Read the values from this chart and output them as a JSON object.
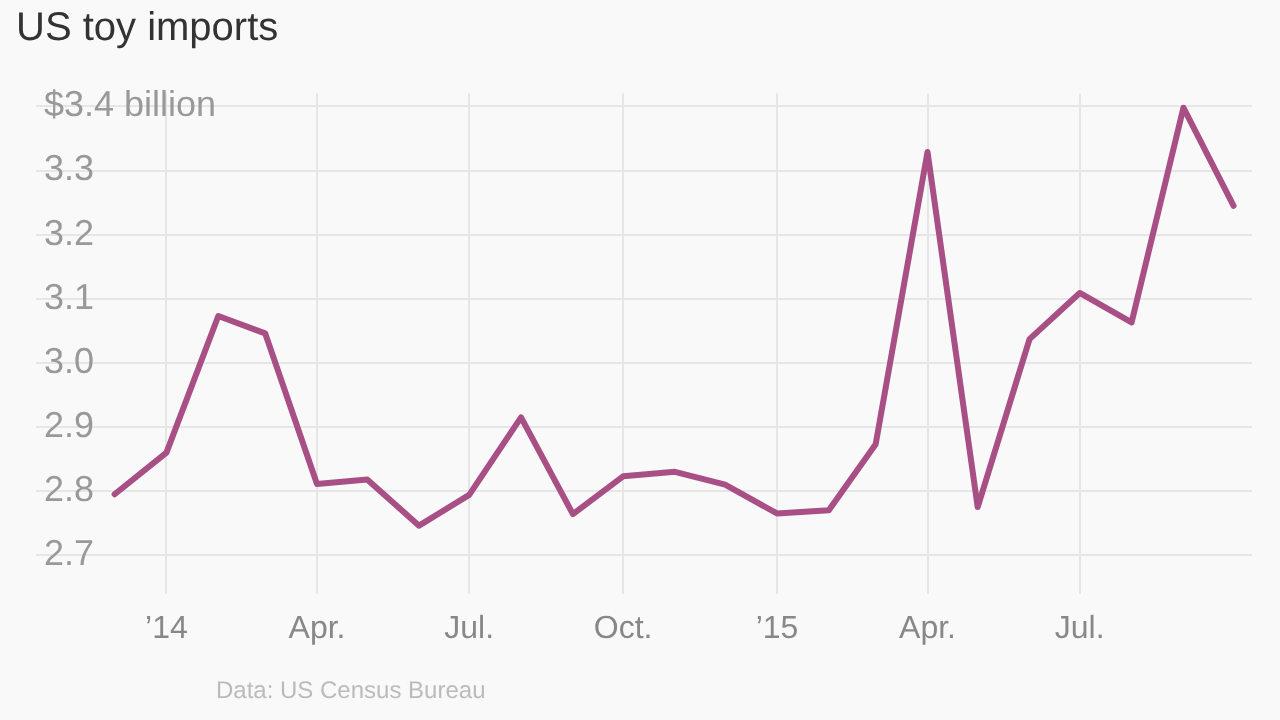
{
  "chart_data": {
    "type": "line",
    "title": "US toy imports",
    "annotations": [
      "Data: US Census Bureau"
    ],
    "x": [
      "2013-12-01",
      "2014-01-01",
      "2014-02-01",
      "2014-03-01",
      "2014-04-01",
      "2014-05-01",
      "2014-06-01",
      "2014-07-01",
      "2014-08-01",
      "2014-09-01",
      "2014-10-01",
      "2014-11-01",
      "2014-12-01",
      "2015-01-01",
      "2015-02-01",
      "2015-03-01",
      "2015-04-01",
      "2015-05-01",
      "2015-06-01",
      "2015-07-01",
      "2015-08-01",
      "2015-09-01",
      "2015-10-01"
    ],
    "series": [
      {
        "color": "#a84f85",
        "values": [
          2.795,
          2.86,
          3.073,
          3.046,
          2.811,
          2.818,
          2.746,
          2.794,
          2.915,
          2.764,
          2.823,
          2.83,
          2.81,
          2.765,
          2.77,
          2.873,
          3.329,
          2.775,
          3.037,
          3.109,
          3.063,
          3.398,
          3.245
        ]
      }
    ],
    "xlim": [
      "2013-10-15",
      "2015-10-12"
    ],
    "xticks": [
      {
        "value": "2014-01-01",
        "label": "’14"
      },
      {
        "value": "2014-04-01",
        "label": "Apr."
      },
      {
        "value": "2014-07-01",
        "label": "Jul."
      },
      {
        "value": "2014-10-01",
        "label": "Oct."
      },
      {
        "value": "2015-01-01",
        "label": "’15"
      },
      {
        "value": "2015-04-01",
        "label": "Apr."
      },
      {
        "value": "2015-07-01",
        "label": "Jul."
      }
    ],
    "ylim": [
      2.64,
      3.42
    ],
    "yticks": [
      2.7,
      2.8,
      2.9,
      {
        "value": 3.0,
        "label": "3.0"
      },
      3.1,
      3.2,
      3.3,
      {
        "value": 3.4,
        "label": "$3.4 billion"
      }
    ],
    "grid": true,
    "legend": false,
    "marker": "none",
    "line_style": "solid"
  }
}
